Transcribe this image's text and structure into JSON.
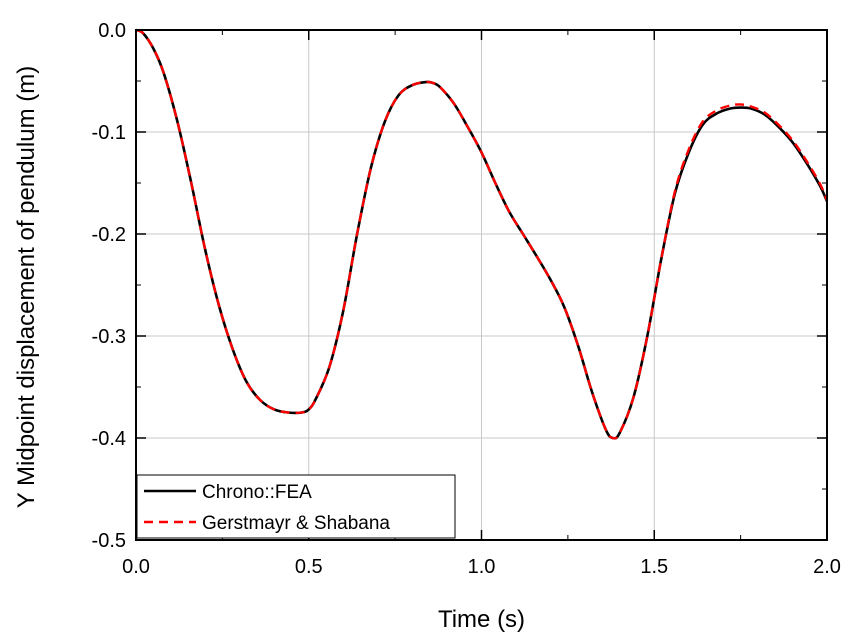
{
  "chart_data": {
    "type": "line",
    "xlabel": "Time (s)",
    "ylabel": "Y Midpoint displacement of pendulum (m)",
    "xlim": [
      0.0,
      2.0
    ],
    "ylim": [
      -0.5,
      0.0
    ],
    "x_ticks": [
      "0.0",
      "0.5",
      "1.0",
      "1.5",
      "2.0"
    ],
    "y_ticks": [
      "0.0",
      "-0.1",
      "-0.2",
      "-0.3",
      "-0.4",
      "-0.5"
    ],
    "grid": true,
    "legend_position": "bottom-left",
    "series": [
      {
        "name": "Chrono::FEA",
        "color": "#000000",
        "style": "solid",
        "x": [
          0.0,
          0.02,
          0.05,
          0.08,
          0.12,
          0.16,
          0.2,
          0.24,
          0.28,
          0.32,
          0.36,
          0.4,
          0.44,
          0.48,
          0.5,
          0.52,
          0.56,
          0.6,
          0.64,
          0.68,
          0.72,
          0.76,
          0.8,
          0.84,
          0.86,
          0.88,
          0.92,
          0.96,
          1.0,
          1.04,
          1.08,
          1.12,
          1.16,
          1.2,
          1.24,
          1.28,
          1.32,
          1.36,
          1.38,
          1.4,
          1.44,
          1.48,
          1.52,
          1.56,
          1.6,
          1.64,
          1.68,
          1.72,
          1.75,
          1.78,
          1.82,
          1.86,
          1.9,
          1.94,
          1.98,
          2.0
        ],
        "y": [
          0.0,
          -0.003,
          -0.018,
          -0.042,
          -0.09,
          -0.15,
          -0.215,
          -0.27,
          -0.313,
          -0.345,
          -0.363,
          -0.372,
          -0.375,
          -0.375,
          -0.372,
          -0.362,
          -0.33,
          -0.275,
          -0.2,
          -0.135,
          -0.09,
          -0.064,
          -0.054,
          -0.051,
          -0.052,
          -0.056,
          -0.072,
          -0.095,
          -0.12,
          -0.15,
          -0.178,
          -0.2,
          -0.222,
          -0.245,
          -0.272,
          -0.31,
          -0.355,
          -0.392,
          -0.4,
          -0.395,
          -0.36,
          -0.3,
          -0.225,
          -0.16,
          -0.12,
          -0.093,
          -0.082,
          -0.077,
          -0.076,
          -0.077,
          -0.083,
          -0.095,
          -0.11,
          -0.13,
          -0.153,
          -0.168
        ]
      },
      {
        "name": "Gerstmayr & Shabana",
        "color": "#ff0000",
        "style": "dashed",
        "x": [
          0.0,
          0.02,
          0.05,
          0.08,
          0.12,
          0.16,
          0.2,
          0.24,
          0.28,
          0.32,
          0.36,
          0.4,
          0.44,
          0.48,
          0.5,
          0.52,
          0.56,
          0.6,
          0.64,
          0.68,
          0.72,
          0.76,
          0.8,
          0.84,
          0.86,
          0.88,
          0.92,
          0.96,
          1.0,
          1.04,
          1.08,
          1.12,
          1.16,
          1.2,
          1.24,
          1.28,
          1.32,
          1.36,
          1.38,
          1.4,
          1.44,
          1.48,
          1.52,
          1.56,
          1.6,
          1.64,
          1.68,
          1.72,
          1.75,
          1.78,
          1.82,
          1.86,
          1.9,
          1.94,
          1.98,
          2.0
        ],
        "y": [
          0.0,
          -0.003,
          -0.018,
          -0.042,
          -0.09,
          -0.15,
          -0.215,
          -0.27,
          -0.313,
          -0.345,
          -0.363,
          -0.372,
          -0.375,
          -0.375,
          -0.372,
          -0.362,
          -0.33,
          -0.275,
          -0.2,
          -0.135,
          -0.09,
          -0.064,
          -0.054,
          -0.051,
          -0.052,
          -0.056,
          -0.072,
          -0.095,
          -0.12,
          -0.15,
          -0.178,
          -0.2,
          -0.222,
          -0.245,
          -0.272,
          -0.31,
          -0.355,
          -0.392,
          -0.4,
          -0.395,
          -0.36,
          -0.3,
          -0.225,
          -0.158,
          -0.117,
          -0.09,
          -0.079,
          -0.074,
          -0.073,
          -0.075,
          -0.081,
          -0.093,
          -0.108,
          -0.128,
          -0.151,
          -0.167
        ]
      }
    ]
  }
}
